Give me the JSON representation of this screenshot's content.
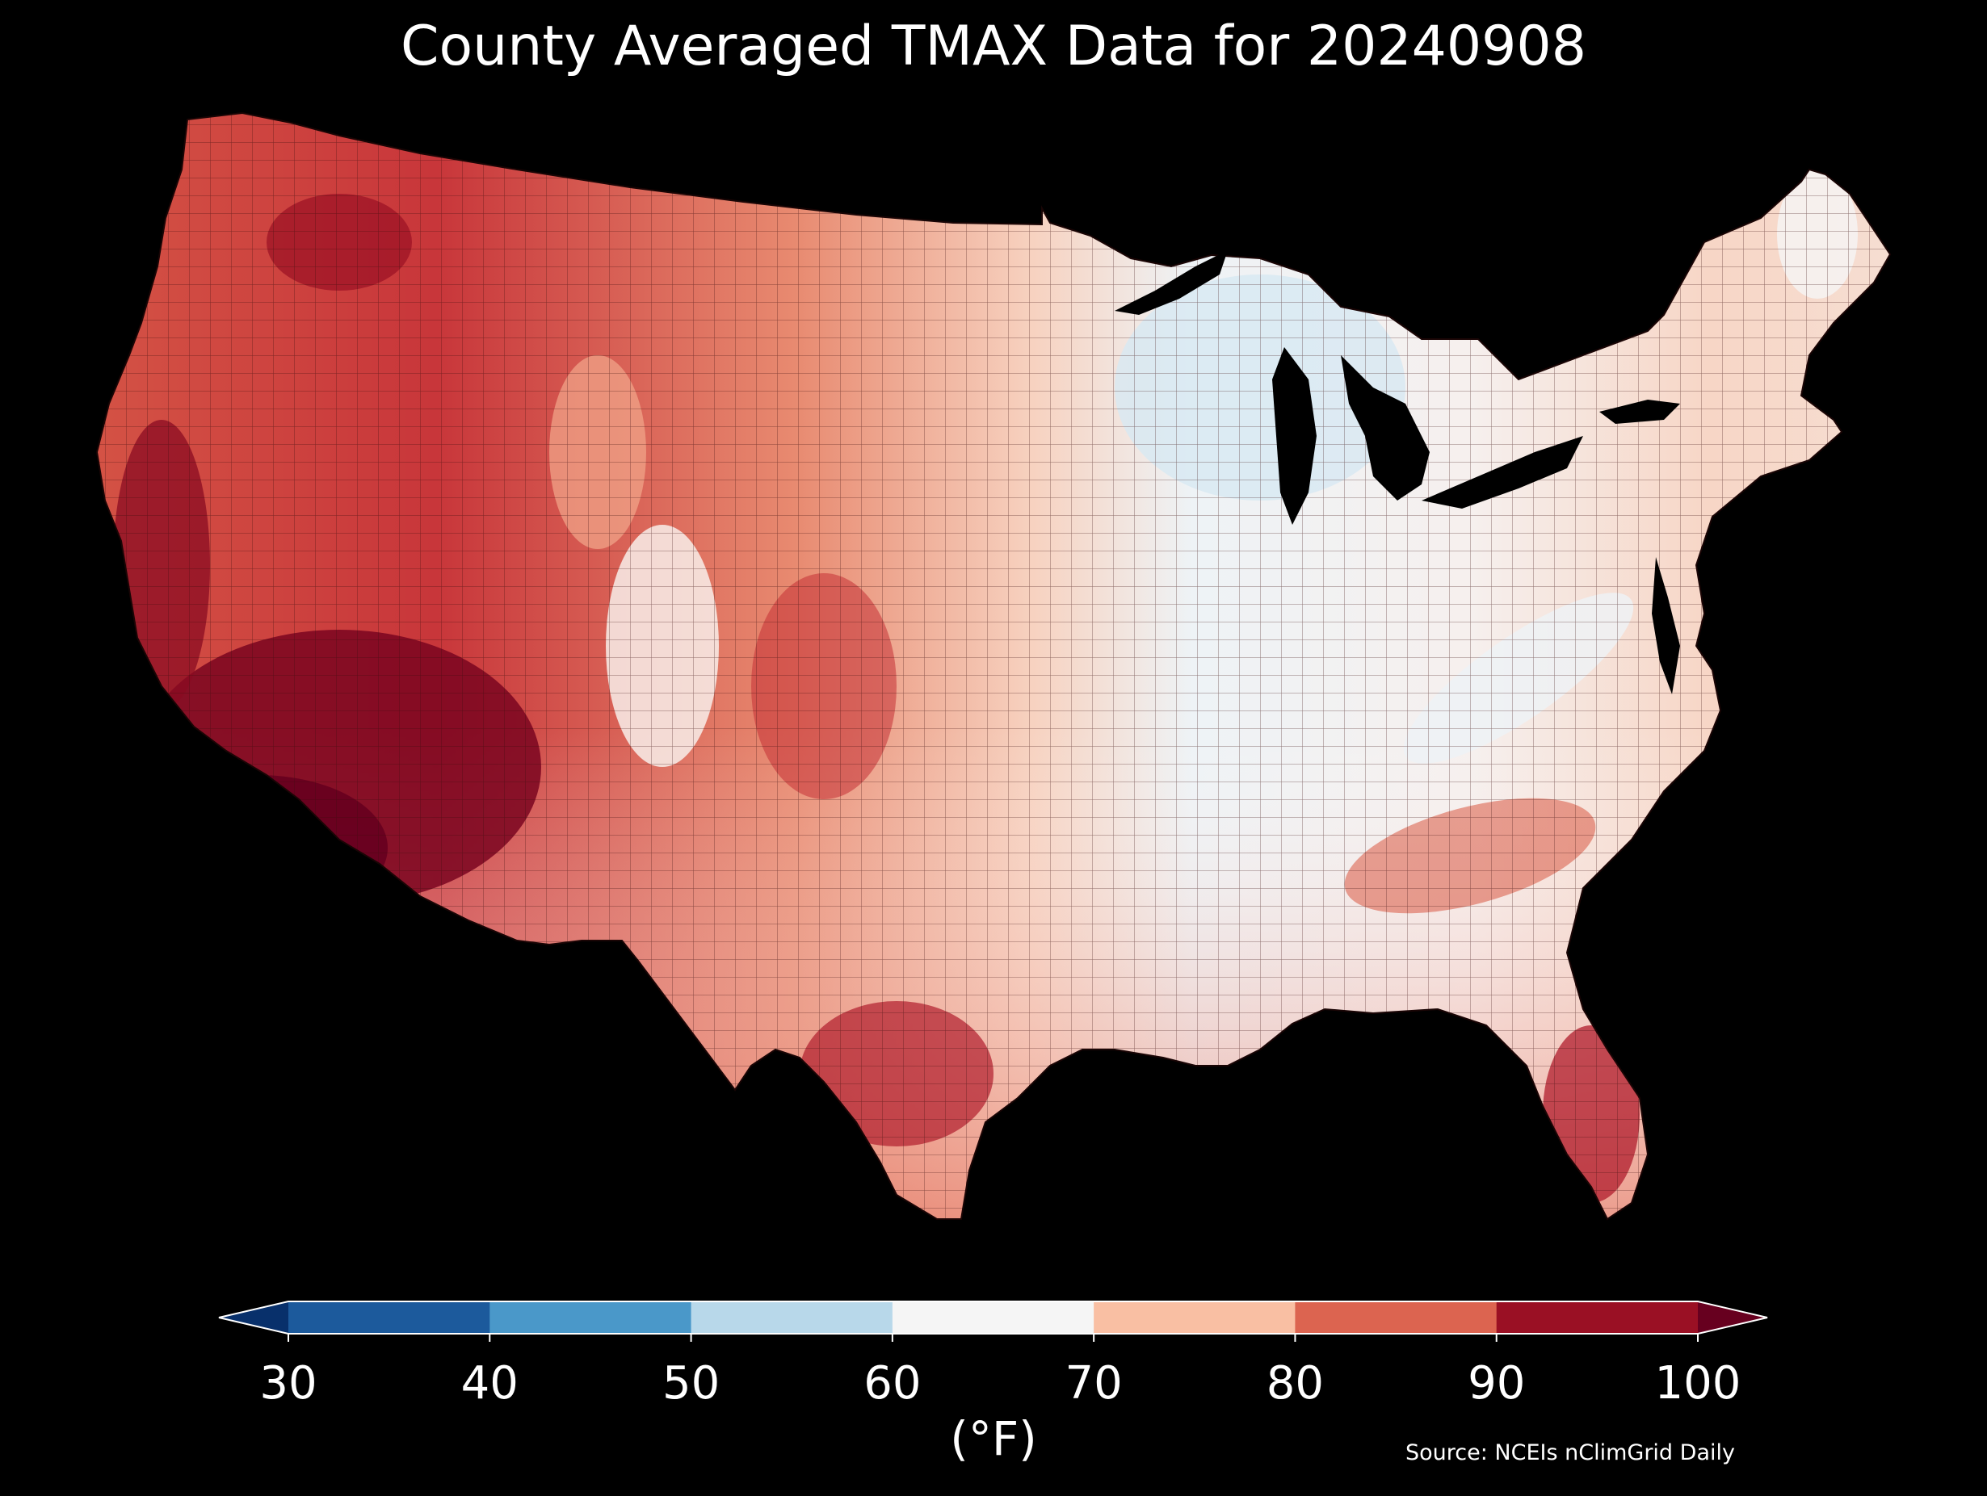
{
  "title": "County Averaged TMAX Data for 20240908",
  "colorbar": {
    "unit": "(°F)",
    "ticks": [
      "30",
      "40",
      "50",
      "60",
      "70",
      "80",
      "90",
      "100"
    ],
    "bins": [
      {
        "range": "<30",
        "color": "#08306b"
      },
      {
        "range": "30-40",
        "color": "#1c5a9c"
      },
      {
        "range": "40-50",
        "color": "#4a98c9"
      },
      {
        "range": "50-60",
        "color": "#b8d8ea"
      },
      {
        "range": "60-70",
        "color": "#f5f5f5"
      },
      {
        "range": "70-80",
        "color": "#f9bfa3"
      },
      {
        "range": "80-90",
        "color": "#dc6450"
      },
      {
        "range": "90-100",
        "color": "#9a1024"
      },
      {
        "range": ">100",
        "color": "#67001f"
      }
    ]
  },
  "source": "Source: NCEIs nClimGrid Daily",
  "map": {
    "region": "Contiguous United States counties",
    "background": "#000000",
    "ocean_lakes": "#000000",
    "county_border": "#2a0a0a"
  }
}
